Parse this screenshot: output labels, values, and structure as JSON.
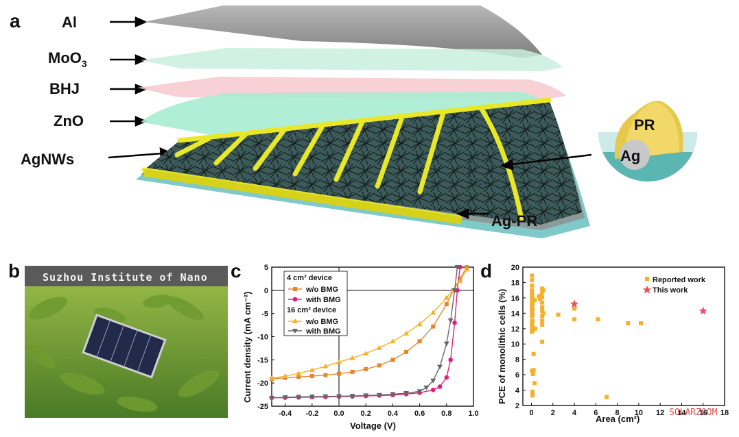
{
  "panel_a": {
    "letter": "a",
    "layers": [
      "Al",
      "MoO",
      "BHJ",
      "ZnO",
      "AgNWs"
    ],
    "moo3_subscript": "3",
    "electrode_label": "Ag-PR",
    "inset_labels": {
      "outer": "PR",
      "inner": "Ag"
    },
    "colors": {
      "al": "#9a9a9a",
      "moo3": "#c9efe0",
      "bhj": "#f6c9cf",
      "zno": "#a9ecd3",
      "grid": "#e8e829",
      "substrate": "#7fc9c9"
    }
  },
  "panel_b": {
    "letter": "b",
    "photo_text": "Suzhou Institute of Nano"
  },
  "chart_data": [
    {
      "type": "line",
      "panel": "c",
      "xlabel": "Voltage (V)",
      "ylabel": "Current density (mA cm⁻²)",
      "xlim": [
        -0.5,
        1.0
      ],
      "ylim": [
        -25,
        5
      ],
      "xticks": [
        "-0.4",
        "-0.2",
        "0.0",
        "0.2",
        "0.4",
        "0.6",
        "0.8",
        "1.0"
      ],
      "yticks": [
        "-25",
        "-20",
        "-15",
        "-10",
        "-5",
        "0",
        "5"
      ],
      "legend_groups": [
        {
          "title": "4 cm² device",
          "entries": [
            "w/o BMG",
            "with BMG"
          ]
        },
        {
          "title": "16 cm² device",
          "entries": [
            "w/o BMG",
            "with BMG"
          ]
        }
      ],
      "series": [
        {
          "name": "w/o BMG",
          "group": "4 cm² device",
          "marker": "square",
          "color": "#e8862a",
          "x": [
            -0.5,
            -0.4,
            -0.3,
            -0.2,
            -0.1,
            0.0,
            0.1,
            0.2,
            0.3,
            0.4,
            0.5,
            0.6,
            0.7,
            0.8,
            0.85,
            0.9,
            0.95
          ],
          "y": [
            -19.1,
            -18.9,
            -18.7,
            -18.5,
            -18.3,
            -18.0,
            -17.6,
            -17.0,
            -16.2,
            -15.0,
            -13.3,
            -11.0,
            -7.8,
            -3.0,
            0.0,
            2.5,
            5.0
          ]
        },
        {
          "name": "with BMG",
          "group": "4 cm² device",
          "marker": "circle",
          "color": "#e0207a",
          "x": [
            -0.5,
            -0.4,
            -0.3,
            -0.2,
            -0.1,
            0.0,
            0.1,
            0.2,
            0.3,
            0.4,
            0.5,
            0.6,
            0.7,
            0.75,
            0.8,
            0.83,
            0.86,
            0.88,
            0.9
          ],
          "y": [
            -23.2,
            -23.15,
            -23.1,
            -23.05,
            -23.0,
            -22.95,
            -22.9,
            -22.8,
            -22.7,
            -22.6,
            -22.4,
            -22.1,
            -21.5,
            -20.8,
            -18.8,
            -15.0,
            -7.0,
            0.0,
            5.0
          ]
        },
        {
          "name": "w/o BMG",
          "group": "16 cm² device",
          "marker": "triangle-up",
          "color": "#f5b02e",
          "x": [
            -0.5,
            -0.4,
            -0.3,
            -0.2,
            -0.1,
            0.0,
            0.1,
            0.2,
            0.3,
            0.4,
            0.5,
            0.6,
            0.7,
            0.8,
            0.85,
            0.9,
            0.95
          ],
          "y": [
            -19.0,
            -18.5,
            -17.9,
            -17.2,
            -16.4,
            -15.5,
            -14.6,
            -13.6,
            -12.4,
            -11.0,
            -9.3,
            -7.3,
            -4.8,
            -1.6,
            0.0,
            2.0,
            4.5
          ]
        },
        {
          "name": "with BMG",
          "group": "16 cm² device",
          "marker": "triangle-down",
          "color": "#666666",
          "x": [
            -0.5,
            -0.4,
            -0.3,
            -0.2,
            -0.1,
            0.0,
            0.1,
            0.2,
            0.3,
            0.4,
            0.5,
            0.6,
            0.65,
            0.7,
            0.75,
            0.8,
            0.83,
            0.86,
            0.88
          ],
          "y": [
            -23.2,
            -23.1,
            -23.0,
            -22.95,
            -22.9,
            -22.85,
            -22.8,
            -22.7,
            -22.6,
            -22.4,
            -22.2,
            -21.8,
            -21.0,
            -19.5,
            -16.5,
            -11.5,
            -6.5,
            0.0,
            5.0
          ]
        }
      ]
    },
    {
      "type": "scatter",
      "panel": "d",
      "xlabel": "Area (cm²)",
      "ylabel": "PCE of monolithic cells (%)",
      "xlim": [
        -0.8,
        18
      ],
      "ylim": [
        2,
        20
      ],
      "xticks": [
        "0",
        "2",
        "4",
        "6",
        "8",
        "10",
        "12",
        "14",
        "16",
        "18"
      ],
      "yticks": [
        "2",
        "4",
        "6",
        "8",
        "10",
        "12",
        "14",
        "16",
        "18",
        "20"
      ],
      "legend_position": "top-right",
      "series": [
        {
          "name": "Reported work",
          "marker": "square",
          "color": "#f5b02e",
          "x": [
            0.05,
            0.05,
            0.05,
            0.05,
            0.05,
            0.05,
            0.05,
            0.05,
            0.05,
            0.05,
            0.05,
            0.05,
            0.05,
            0.05,
            0.05,
            0.05,
            0.1,
            0.1,
            0.1,
            0.1,
            0.1,
            0.1,
            0.1,
            0.1,
            0.15,
            0.15,
            0.2,
            0.2,
            0.3,
            0.3,
            0.35,
            0.7,
            0.8,
            0.9,
            1.0,
            1.0,
            1.0,
            1.0,
            1.0,
            1.0,
            1.0,
            1.0,
            1.0,
            1.0,
            1.1,
            1.1,
            2.5,
            4.0,
            4.0,
            6.2,
            7.0,
            9.0,
            10.2
          ],
          "y": [
            18.9,
            18.3,
            17.6,
            17.0,
            16.6,
            16.2,
            15.6,
            15.1,
            14.7,
            14.2,
            13.6,
            13.0,
            12.5,
            12.0,
            11.6,
            6.5,
            16.0,
            15.3,
            14.5,
            13.8,
            12.9,
            12.2,
            3.8,
            3.3,
            11.8,
            6.1,
            8.7,
            6.6,
            4.9,
            15.7,
            12.0,
            16.2,
            15.9,
            16.3,
            17.2,
            16.8,
            16.1,
            15.4,
            14.8,
            14.3,
            13.6,
            13.0,
            12.5,
            10.3,
            17.0,
            14.0,
            13.8,
            14.6,
            13.2,
            13.2,
            3.1,
            12.7,
            12.7
          ]
        },
        {
          "name": "This work",
          "marker": "star",
          "color": "#e8525d",
          "x": [
            4,
            16
          ],
          "y": [
            15.2,
            14.3
          ]
        }
      ]
    }
  ],
  "panel_c": {
    "letter": "c"
  },
  "panel_d": {
    "letter": "d"
  },
  "watermark": "SOLARZOOM"
}
